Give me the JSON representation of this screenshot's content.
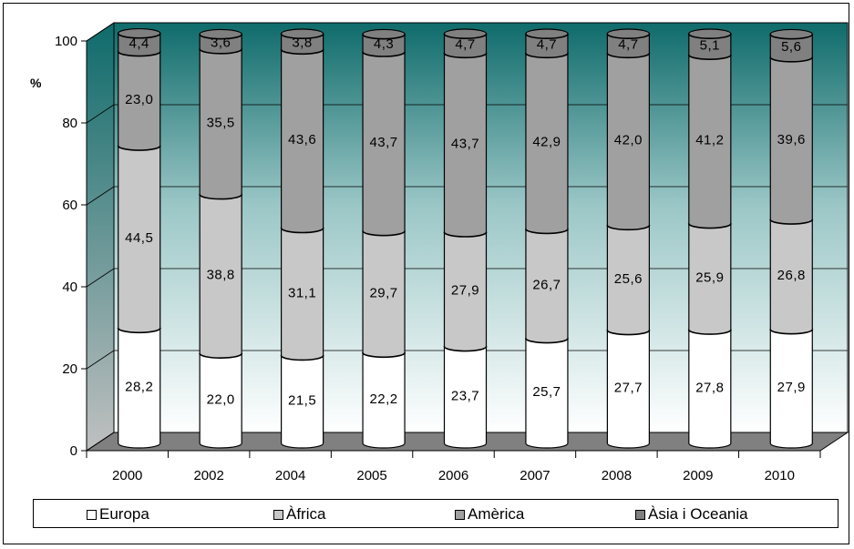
{
  "chart_data": {
    "type": "bar",
    "stacked": true,
    "three_d": true,
    "ylabel": "%",
    "ylim": [
      0,
      100
    ],
    "yticks": [
      "0",
      "20",
      "40",
      "60",
      "80",
      "100"
    ],
    "grid": true,
    "legend_position": "bottom",
    "categories": [
      "2000",
      "2002",
      "2004",
      "2005",
      "2006",
      "2007",
      "2008",
      "2009",
      "2010"
    ],
    "series": [
      {
        "name": "Europa",
        "color": "#ffffff",
        "values": [
          28.2,
          22.0,
          21.5,
          22.2,
          23.7,
          25.7,
          27.7,
          27.8,
          27.9
        ],
        "labels": [
          "28,2",
          "22,0",
          "21,5",
          "22,2",
          "23,7",
          "25,7",
          "27,7",
          "27,8",
          "27,9"
        ]
      },
      {
        "name": "Àfrica",
        "color": "#c8c8c8",
        "values": [
          44.5,
          38.8,
          31.1,
          29.7,
          27.9,
          26.7,
          25.6,
          25.9,
          26.8
        ],
        "labels": [
          "44,5",
          "38,8",
          "31,1",
          "29,7",
          "27,9",
          "26,7",
          "25,6",
          "25,9",
          "26,8"
        ]
      },
      {
        "name": "Amèrica",
        "color": "#a0a0a0",
        "values": [
          23.0,
          35.5,
          43.6,
          43.7,
          43.7,
          42.9,
          42.0,
          41.2,
          39.6
        ],
        "labels": [
          "23,0",
          "35,5",
          "43,6",
          "43,7",
          "43,7",
          "42,9",
          "42,0",
          "41,2",
          "39,6"
        ]
      },
      {
        "name": "Àsia i Oceania",
        "color": "#808080",
        "values": [
          4.4,
          3.6,
          3.8,
          4.3,
          4.7,
          4.7,
          4.7,
          5.1,
          5.6
        ],
        "labels": [
          "4,4",
          "3,6",
          "3,8",
          "4,3",
          "4,7",
          "4,7",
          "4,7",
          "5,1",
          "5,6"
        ]
      }
    ],
    "colors": {
      "wall_top": "#0f6b6b",
      "wall_bottom": "#ffffff",
      "floor": "#808080",
      "side_wall": "#9a9a9a"
    }
  },
  "legend": {
    "items": [
      {
        "label": "Europa",
        "color": "#ffffff"
      },
      {
        "label": "Àfrica",
        "color": "#c8c8c8"
      },
      {
        "label": "Amèrica",
        "color": "#a0a0a0"
      },
      {
        "label": "Àsia i Oceania",
        "color": "#808080"
      }
    ]
  }
}
